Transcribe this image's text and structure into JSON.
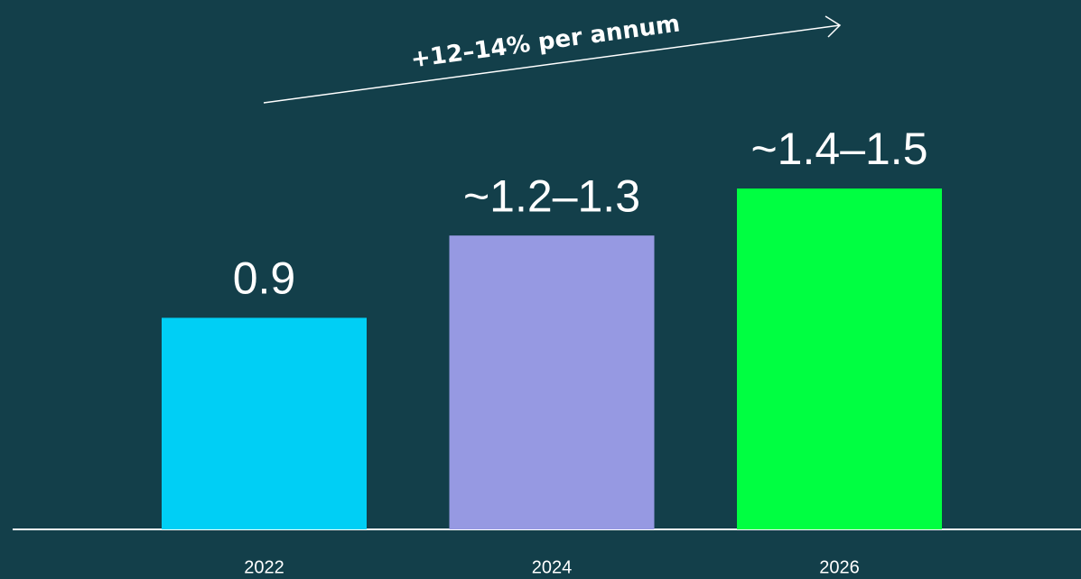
{
  "chart_data": {
    "type": "bar",
    "categories": [
      "2022",
      "2024",
      "2026"
    ],
    "values": [
      0.9,
      1.25,
      1.45
    ],
    "value_labels": [
      "0.9",
      "~1.2–1.3",
      "~1.4–1.5"
    ],
    "colors": [
      "#00cff5",
      "#9699e2",
      "#00ff41"
    ],
    "ylim": [
      0,
      1.5
    ],
    "annotation": "+12–14% per annum"
  }
}
